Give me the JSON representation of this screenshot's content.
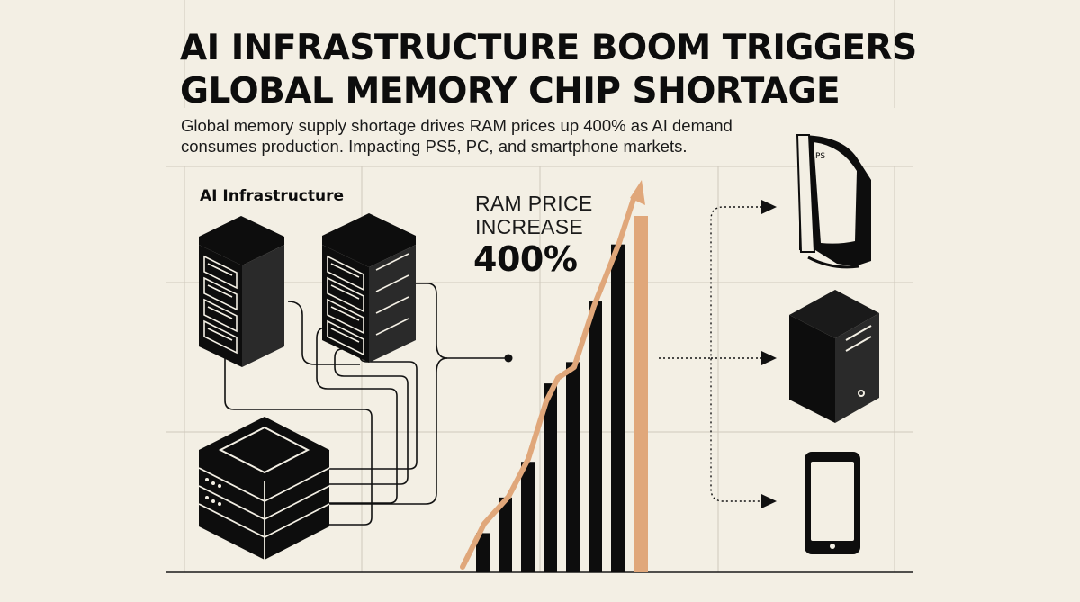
{
  "headline": {
    "line1": "AI INFRASTRUCTURE BOOM TRIGGERS",
    "line2": "GLOBAL MEMORY CHIP SHORTAGE"
  },
  "subtitle": {
    "line1": "Global memory supply shortage drives RAM prices up 400% as AI demand",
    "line2": "consumes production. Impacting PS5, PC, and smartphone markets."
  },
  "infrastructure": {
    "label": "AI Infrastructure"
  },
  "price_chart": {
    "label_line1": "RAM PRICE",
    "label_line2": "INCREASE",
    "value": "400%",
    "bar_levels": [
      0.11,
      0.21,
      0.31,
      0.53,
      0.59,
      0.76,
      0.92
    ],
    "highlight_level": 1.0
  },
  "devices": [
    {
      "icon": "game-console-icon"
    },
    {
      "icon": "desktop-tower-icon"
    },
    {
      "icon": "smartphone-icon"
    }
  ],
  "colors": {
    "background": "#f3efe4",
    "ink": "#0d0d0d",
    "accent": "#e0a77a",
    "grid": "#cfc9bc"
  }
}
